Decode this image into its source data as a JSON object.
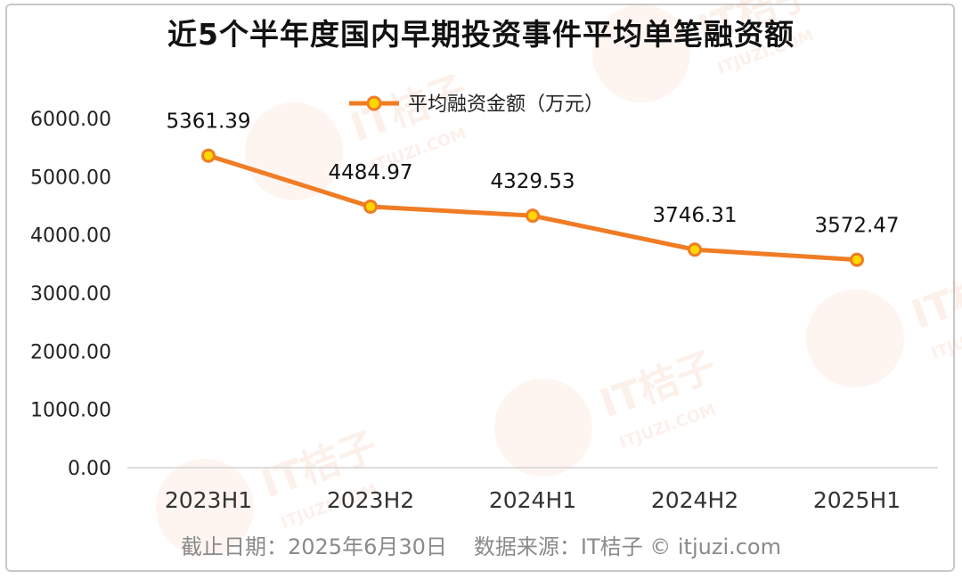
{
  "chart_data": {
    "type": "line",
    "title": "近5个半年度国内早期投资事件平均单笔融资额",
    "categories": [
      "2023H1",
      "2023H2",
      "2024H1",
      "2024H2",
      "2025H1"
    ],
    "series": [
      {
        "name": "平均融资金额（万元）",
        "values": [
          5361.39,
          4484.97,
          4329.53,
          3746.31,
          3572.47
        ],
        "labels": [
          "5361.39",
          "4484.97",
          "4329.53",
          "3746.31",
          "3572.47"
        ],
        "color": "#f07c24",
        "marker_fill": "#ffd700"
      }
    ],
    "y_ticks": [
      "0.00",
      "1000.00",
      "2000.00",
      "3000.00",
      "4000.00",
      "5000.00",
      "6000.00"
    ],
    "ylim": [
      0,
      6000
    ],
    "grid": false,
    "legend_position": "top-center"
  },
  "footer": {
    "date": "截止日期：2025年6月30日",
    "source": "数据来源：IT桔子 © itjuzi.com"
  },
  "watermark": {
    "brand": "IT桔子",
    "url": "ITJUZI.COM"
  }
}
